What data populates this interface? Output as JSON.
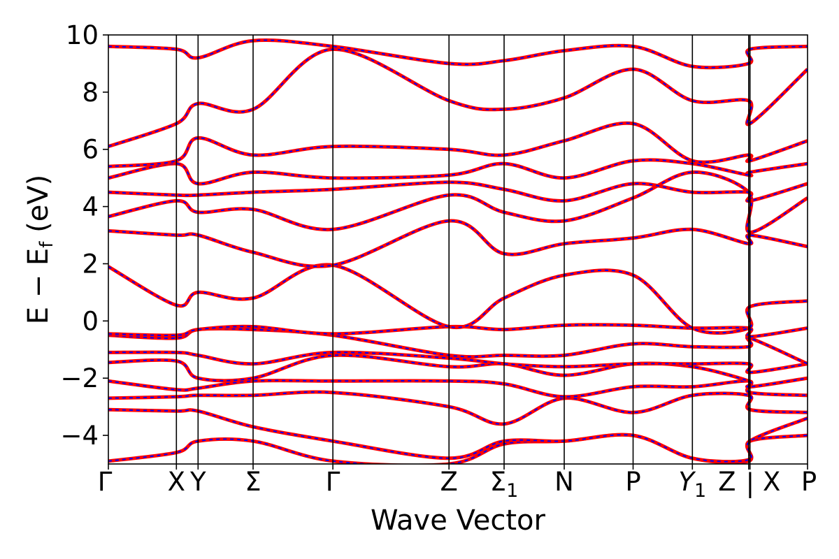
{
  "chart_data": {
    "type": "line",
    "title": "",
    "xlabel": "Wave Vector",
    "ylabel": "E − E",
    "ylabel_sub": "f",
    "ylabel_unit": " (eV)",
    "ylim": [
      -5,
      10
    ],
    "yticks": [
      10,
      8,
      6,
      4,
      2,
      0,
      -2,
      -4
    ],
    "ytick_labels": [
      "10",
      "8",
      "6",
      "4",
      "2",
      "0",
      "−2",
      "−4"
    ],
    "grid": false,
    "legend": "none",
    "style": {
      "solid_color": "#ff0000",
      "dashed_color": "#0000ff"
    },
    "kpath": [
      {
        "label": "Γ",
        "x": 0.0
      },
      {
        "label": "X",
        "x": 0.973
      },
      {
        "label": "Y",
        "x": 1.283
      },
      {
        "label": "Σ",
        "x": 2.07
      },
      {
        "label": "Γ",
        "x": 3.211
      },
      {
        "label": "Z",
        "x": 4.872
      },
      {
        "label": "Σ",
        "sub": "1",
        "x": 5.66
      },
      {
        "label": "N",
        "x": 6.52
      },
      {
        "label": "P",
        "x": 7.505
      },
      {
        "label": "Y",
        "sub": "1",
        "italic": true,
        "x": 8.353
      },
      {
        "label": "Z",
        "x": 9.158
      },
      {
        "label": "X",
        "x": 9.177
      },
      {
        "label": "P",
        "x": 10.0
      }
    ],
    "break_label": "|",
    "vertical_lines": [
      0.973,
      1.283,
      2.07,
      3.211,
      4.872,
      5.66,
      6.52,
      7.505,
      8.353,
      9.158,
      9.177
    ],
    "xlim": [
      0.0,
      10.0
    ],
    "series": [
      {
        "x": [
          0.0,
          0.973,
          1.283,
          2.07,
          3.211,
          4.872,
          5.66,
          6.52,
          7.505,
          8.353,
          9.158,
          9.177,
          10.0
        ],
        "y": [
          -4.9,
          -4.6,
          -4.2,
          -4.2,
          -4.9,
          -5.0,
          -4.3,
          -4.2,
          -4.0,
          -4.8,
          -4.9,
          -4.2,
          -4.0
        ]
      },
      {
        "x": [
          0.0,
          0.973,
          1.283,
          2.07,
          3.211,
          4.872,
          5.66,
          6.52,
          7.505,
          8.353,
          9.158,
          9.177,
          10.0
        ],
        "y": [
          -3.1,
          -3.15,
          -3.15,
          -3.7,
          -4.2,
          -4.8,
          -4.2,
          -4.2,
          -4.0,
          -4.8,
          -4.85,
          -4.2,
          -3.4
        ]
      },
      {
        "x": [
          0.0,
          0.973,
          1.283,
          2.07,
          3.211,
          4.872,
          5.66,
          6.52,
          7.505,
          8.353,
          9.158,
          9.177,
          10.0
        ],
        "y": [
          -2.7,
          -2.65,
          -2.6,
          -2.6,
          -2.5,
          -3.0,
          -3.6,
          -2.7,
          -3.2,
          -2.6,
          -2.6,
          -3.1,
          -3.2
        ]
      },
      {
        "x": [
          0.0,
          0.973,
          1.283,
          2.07,
          3.211,
          4.872,
          5.66,
          6.52,
          7.505,
          8.353,
          9.158,
          9.177,
          10.0
        ],
        "y": [
          -2.1,
          -2.4,
          -2.35,
          -2.1,
          -2.1,
          -2.1,
          -2.2,
          -2.65,
          -2.3,
          -2.3,
          -2.1,
          -2.5,
          -2.6
        ]
      },
      {
        "x": [
          0.0,
          0.973,
          1.283,
          2.07,
          3.211,
          4.872,
          5.66,
          6.52,
          7.505,
          8.353,
          9.158,
          9.177,
          10.0
        ],
        "y": [
          -1.45,
          -1.4,
          -2.0,
          -2.0,
          -1.2,
          -1.6,
          -1.5,
          -1.9,
          -1.5,
          -1.6,
          -2.1,
          -2.3,
          -2.0
        ]
      },
      {
        "x": [
          0.0,
          0.973,
          1.283,
          2.07,
          3.211,
          4.872,
          5.66,
          6.52,
          7.505,
          8.353,
          9.158,
          9.177,
          10.0
        ],
        "y": [
          -1.1,
          -1.1,
          -1.2,
          -1.5,
          -1.1,
          -1.3,
          -1.5,
          -1.6,
          -1.5,
          -1.5,
          -1.5,
          -1.8,
          -1.5
        ]
      },
      {
        "x": [
          0.0,
          0.973,
          1.283,
          2.07,
          3.211,
          4.872,
          5.66,
          6.52,
          7.505,
          8.353,
          9.158,
          9.177,
          10.0
        ],
        "y": [
          -0.5,
          -0.6,
          -0.3,
          -0.3,
          -0.5,
          -1.2,
          -1.2,
          -1.2,
          -0.8,
          -0.9,
          -0.9,
          -0.6,
          -1.5
        ]
      },
      {
        "x": [
          0.0,
          0.973,
          1.283,
          2.07,
          3.211,
          4.872,
          5.66,
          6.52,
          7.505,
          8.353,
          9.158,
          9.177,
          10.0
        ],
        "y": [
          -0.45,
          -0.5,
          -0.3,
          -0.2,
          -0.45,
          -0.2,
          -0.3,
          -0.15,
          -0.15,
          -0.25,
          -0.25,
          -0.55,
          -0.25
        ]
      },
      {
        "x": [
          0.0,
          0.973,
          1.283,
          2.07,
          3.211,
          4.872,
          5.66,
          6.52,
          7.505,
          8.353,
          9.158,
          9.177,
          10.0
        ],
        "y": [
          1.9,
          0.55,
          1.0,
          0.8,
          1.95,
          -0.2,
          0.8,
          1.6,
          1.6,
          -0.25,
          -0.25,
          0.5,
          0.7
        ]
      },
      {
        "x": [
          0.0,
          0.973,
          1.283,
          2.07,
          3.211,
          4.872,
          5.66,
          6.52,
          7.505,
          8.353,
          9.158,
          9.177,
          10.0
        ],
        "y": [
          3.15,
          3.0,
          3.0,
          2.4,
          1.95,
          3.5,
          2.35,
          2.7,
          2.9,
          3.2,
          2.7,
          3.0,
          2.6
        ]
      },
      {
        "x": [
          0.0,
          0.973,
          1.283,
          2.07,
          3.211,
          4.872,
          5.66,
          6.52,
          7.505,
          8.353,
          9.158,
          9.177,
          10.0
        ],
        "y": [
          3.65,
          4.2,
          3.8,
          3.9,
          3.2,
          4.4,
          3.8,
          3.5,
          4.3,
          5.2,
          4.5,
          3.1,
          4.3
        ]
      },
      {
        "x": [
          0.0,
          0.973,
          1.283,
          2.07,
          3.211,
          4.872,
          5.66,
          6.52,
          7.505,
          8.353,
          9.158,
          9.177,
          10.0
        ],
        "y": [
          4.5,
          4.4,
          4.4,
          4.5,
          4.6,
          4.85,
          4.6,
          4.2,
          4.8,
          4.5,
          4.5,
          4.2,
          4.8
        ]
      },
      {
        "x": [
          0.0,
          0.973,
          1.283,
          2.07,
          3.211,
          4.872,
          5.66,
          6.52,
          7.505,
          8.353,
          9.158,
          9.177,
          10.0
        ],
        "y": [
          5.0,
          5.5,
          4.8,
          5.2,
          5.0,
          5.1,
          5.5,
          5.0,
          5.6,
          5.5,
          5.1,
          5.2,
          5.5
        ]
      },
      {
        "x": [
          0.0,
          0.973,
          1.283,
          2.07,
          3.211,
          4.872,
          5.66,
          6.52,
          7.505,
          8.353,
          9.158,
          9.177,
          10.0
        ],
        "y": [
          5.4,
          5.6,
          6.4,
          5.8,
          6.1,
          6.0,
          5.8,
          6.3,
          6.9,
          5.6,
          5.8,
          5.6,
          6.3
        ]
      },
      {
        "x": [
          0.0,
          0.973,
          1.283,
          2.07,
          3.211,
          4.872,
          5.66,
          6.52,
          7.505,
          8.353,
          9.158,
          9.177,
          10.0
        ],
        "y": [
          6.1,
          6.9,
          7.6,
          7.4,
          9.5,
          7.7,
          7.4,
          7.8,
          8.8,
          7.7,
          7.7,
          6.9,
          8.8
        ]
      },
      {
        "x": [
          0.0,
          0.973,
          1.283,
          2.07,
          3.211,
          4.872,
          5.66,
          6.52,
          7.505,
          8.353,
          9.158,
          9.177,
          10.0
        ],
        "y": [
          9.6,
          9.5,
          9.2,
          9.8,
          9.6,
          9.0,
          9.1,
          9.45,
          9.6,
          8.9,
          9.0,
          9.5,
          9.6
        ]
      }
    ]
  }
}
